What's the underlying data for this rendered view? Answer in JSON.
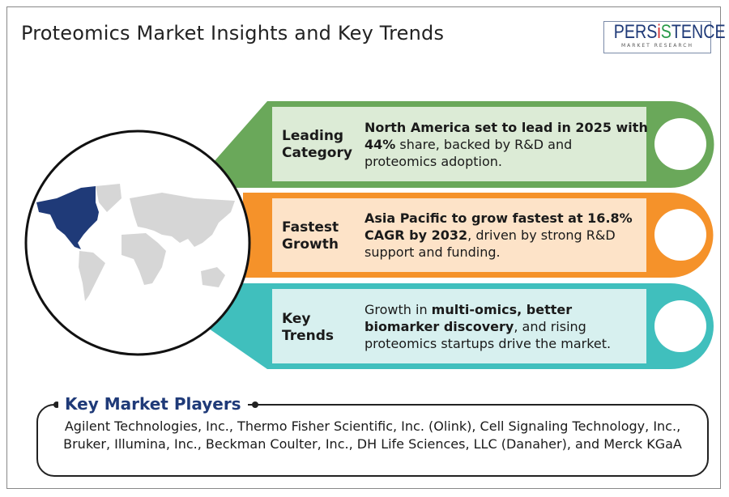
{
  "title": "Proteomics Market Insights and Key Trends",
  "logo": {
    "text": "PERSISTENCE",
    "subtext": "MARKET RESEARCH"
  },
  "colors": {
    "green": "#6aa85a",
    "green_light": "#dcebd6",
    "orange": "#f5922a",
    "orange_light": "#fde3c8",
    "teal": "#40bfbd",
    "teal_light": "#d7f0ef",
    "highlight_region": "#1f3a78",
    "map_grey": "#d6d6d6"
  },
  "map": {
    "highlighted_region": "North America"
  },
  "cards": [
    {
      "label_line1": "Leading",
      "label_line2": "Category",
      "bold": "North America set to lead in 2025 with 44%",
      "rest": " share, backed by R&D and proteomics adoption."
    },
    {
      "label_line1": "Fastest",
      "label_line2": "Growth",
      "bold": "Asia Pacific to grow fastest at 16.8% CAGR by 2032",
      "rest": ", driven by strong R&D support and funding."
    },
    {
      "label_line1": "Key",
      "label_line2": "Trends",
      "pre": "Growth in ",
      "bold": "multi-omics, better biomarker discovery",
      "rest": ", and rising proteomics startups drive the market."
    }
  ],
  "players": {
    "heading": "Key Market Players",
    "text": "Agilent Technologies, Inc., Thermo Fisher Scientific, Inc. (Olink), Cell Signaling Technology, Inc., Bruker, Illumina, Inc., Beckman Coulter, Inc., DH Life Sciences, LLC (Danaher), and Merck KGaA"
  }
}
